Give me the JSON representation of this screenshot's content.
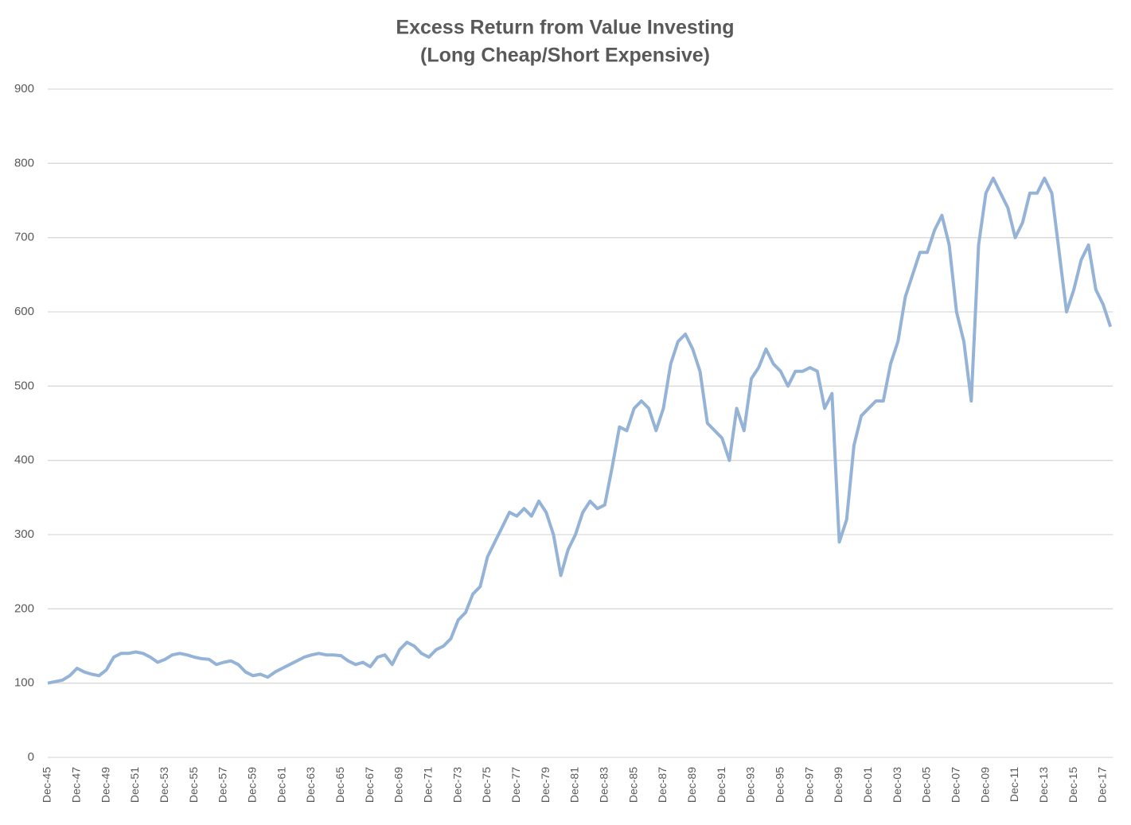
{
  "chart_data": {
    "type": "line",
    "title": "Excess Return from Value Investing",
    "subtitle": "(Long Cheap/Short Expensive)",
    "categories": [
      "Dec-45",
      null,
      null,
      null,
      "Dec-47",
      null,
      null,
      null,
      "Dec-49",
      null,
      null,
      null,
      "Dec-51",
      null,
      null,
      null,
      "Dec-53",
      null,
      null,
      null,
      "Dec-55",
      null,
      null,
      null,
      "Dec-57",
      null,
      null,
      null,
      "Dec-59",
      null,
      null,
      null,
      "Dec-61",
      null,
      null,
      null,
      "Dec-63",
      null,
      null,
      null,
      "Dec-65",
      null,
      null,
      null,
      "Dec-67",
      null,
      null,
      null,
      "Dec-69",
      null,
      null,
      null,
      "Dec-71",
      null,
      null,
      null,
      "Dec-73",
      null,
      null,
      null,
      "Dec-75",
      null,
      null,
      null,
      "Dec-77",
      null,
      null,
      null,
      "Dec-79",
      null,
      null,
      null,
      "Dec-81",
      null,
      null,
      null,
      "Dec-83",
      null,
      null,
      null,
      "Dec-85",
      null,
      null,
      null,
      "Dec-87",
      null,
      null,
      null,
      "Dec-89",
      null,
      null,
      null,
      "Dec-91",
      null,
      null,
      null,
      "Dec-93",
      null,
      null,
      null,
      "Dec-95",
      null,
      null,
      null,
      "Dec-97",
      null,
      null,
      null,
      "Dec-99",
      null,
      null,
      null,
      "Dec-01",
      null,
      null,
      null,
      "Dec-03",
      null,
      null,
      null,
      "Dec-05",
      null,
      null,
      null,
      "Dec-07",
      null,
      null,
      null,
      "Dec-09",
      null,
      null,
      null,
      "Dec-11",
      null,
      null,
      null,
      "Dec-13",
      null,
      null,
      null,
      "Dec-15",
      null,
      null,
      null,
      "Dec-17",
      null
    ],
    "values": [
      100,
      102,
      104,
      110,
      120,
      115,
      112,
      110,
      118,
      135,
      140,
      140,
      142,
      140,
      135,
      128,
      132,
      138,
      140,
      138,
      135,
      133,
      132,
      125,
      128,
      130,
      125,
      115,
      110,
      112,
      108,
      115,
      120,
      125,
      130,
      135,
      138,
      140,
      138,
      138,
      137,
      130,
      125,
      128,
      122,
      135,
      138,
      125,
      145,
      155,
      150,
      140,
      135,
      145,
      150,
      160,
      185,
      195,
      220,
      230,
      270,
      290,
      310,
      330,
      325,
      335,
      325,
      345,
      330,
      300,
      245,
      280,
      300,
      330,
      345,
      335,
      340,
      390,
      445,
      440,
      470,
      480,
      470,
      440,
      470,
      530,
      560,
      570,
      550,
      520,
      450,
      440,
      430,
      400,
      470,
      440,
      510,
      525,
      550,
      530,
      520,
      500,
      520,
      520,
      525,
      520,
      470,
      490,
      290,
      320,
      420,
      460,
      470,
      480,
      480,
      530,
      560,
      620,
      650,
      680,
      680,
      710,
      730,
      690,
      600,
      560,
      480,
      690,
      760,
      780,
      760,
      740,
      700,
      720,
      760,
      760,
      780,
      760,
      680,
      600,
      630,
      670,
      690,
      630,
      610,
      580
    ],
    "color": "#95b3d7",
    "ylim": [
      0,
      900
    ],
    "yticks": [
      0,
      100,
      200,
      300,
      400,
      500,
      600,
      700,
      800,
      900
    ],
    "grid": true
  }
}
